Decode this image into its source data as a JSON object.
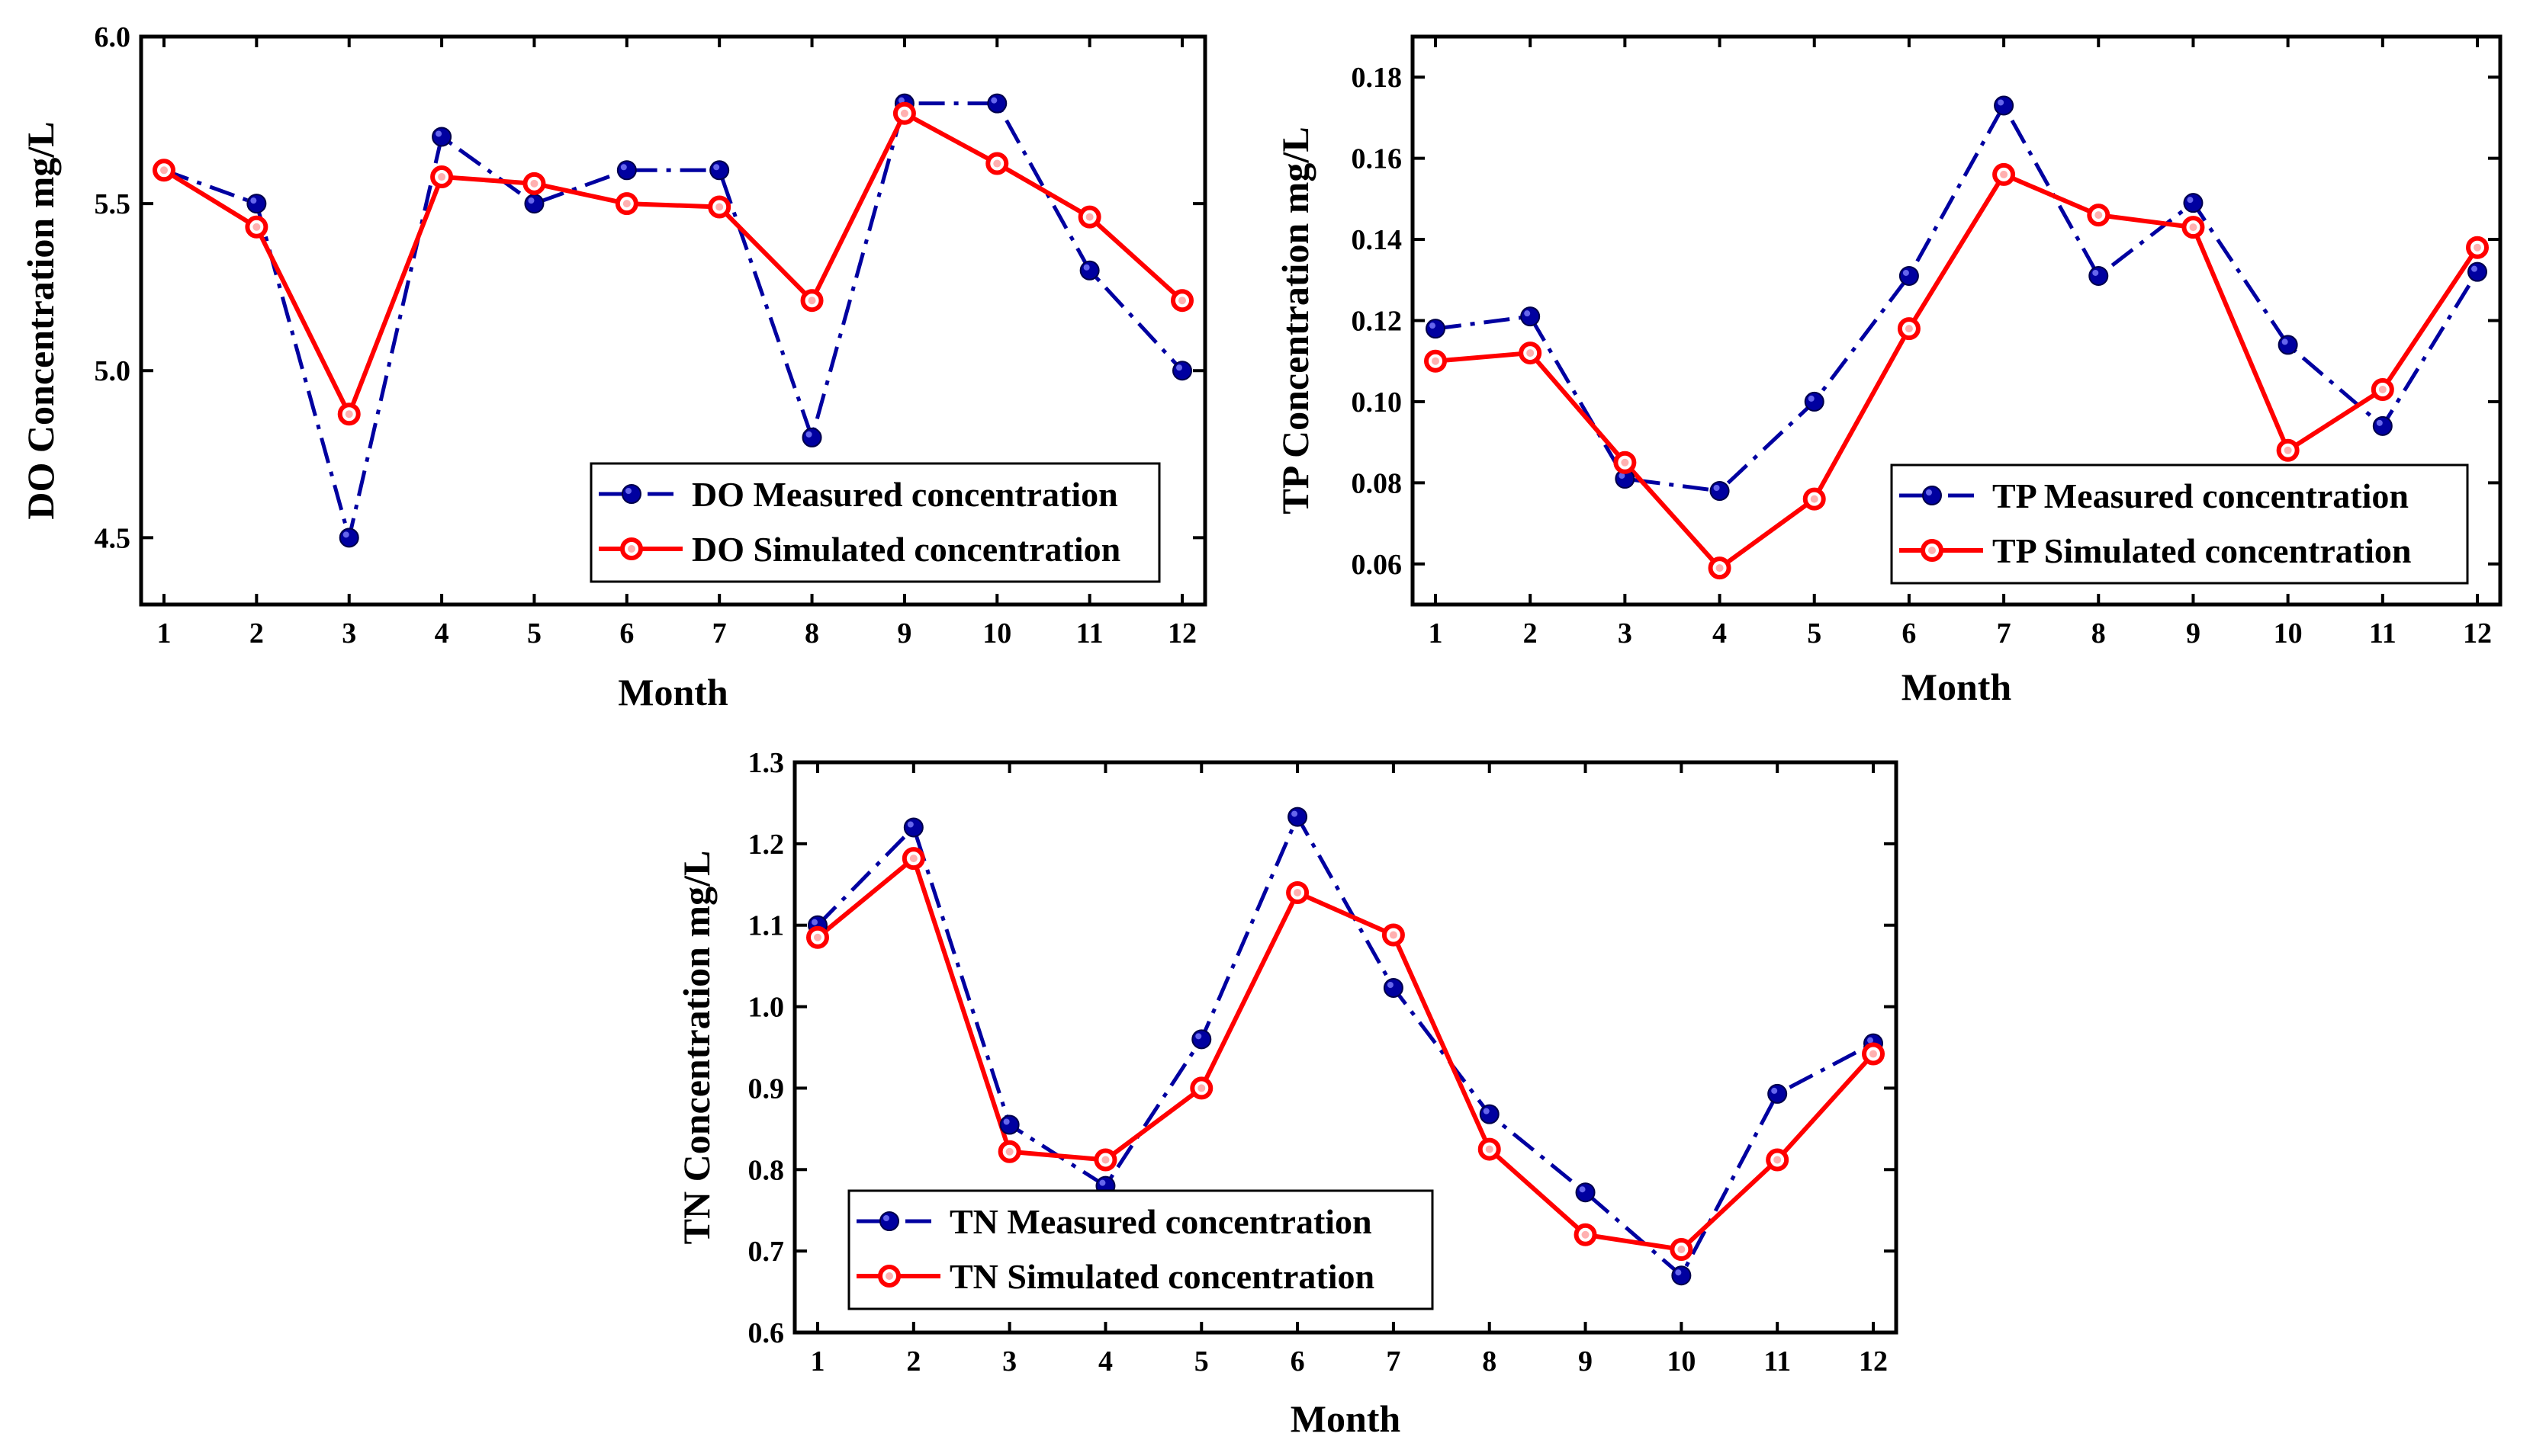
{
  "chart_data": [
    {
      "type": "line",
      "xlabel": "Month",
      "ylabel": "DO Concentration mg/L",
      "categories": [
        "1",
        "2",
        "3",
        "4",
        "5",
        "6",
        "7",
        "8",
        "9",
        "10",
        "11",
        "12"
      ],
      "yticks": [
        "4.5",
        "5.0",
        "5.5",
        "6.0"
      ],
      "ylim": [
        4.3,
        6.0
      ],
      "legend_position": "bottom-right",
      "series": [
        {
          "name": "DO Measured concentration",
          "color": "#0000a0",
          "style": "dash-dot",
          "marker": "dot",
          "values": [
            5.6,
            5.5,
            4.5,
            5.7,
            5.5,
            5.6,
            5.6,
            4.8,
            5.8,
            5.8,
            5.3,
            5.0
          ]
        },
        {
          "name": "DO Simulated concentration",
          "color": "#ff0000",
          "style": "solid",
          "marker": "ring",
          "values": [
            5.6,
            5.43,
            4.87,
            5.58,
            5.56,
            5.5,
            5.49,
            5.21,
            5.77,
            5.62,
            5.46,
            5.21
          ]
        }
      ]
    },
    {
      "type": "line",
      "xlabel": "Month",
      "ylabel": "TP Concentration mg/L",
      "categories": [
        "1",
        "2",
        "3",
        "4",
        "5",
        "6",
        "7",
        "8",
        "9",
        "10",
        "11",
        "12"
      ],
      "yticks": [
        "0.06",
        "0.08",
        "0.10",
        "0.12",
        "0.14",
        "0.16",
        "0.18"
      ],
      "ylim": [
        0.05,
        0.19
      ],
      "legend_position": "bottom-right",
      "series": [
        {
          "name": "TP Measured concentration",
          "color": "#0000a0",
          "style": "dash-dot",
          "marker": "dot",
          "values": [
            0.118,
            0.121,
            0.081,
            0.078,
            0.1,
            0.131,
            0.173,
            0.131,
            0.149,
            0.114,
            0.094,
            0.132
          ]
        },
        {
          "name": "TP Simulated concentration",
          "color": "#ff0000",
          "style": "solid",
          "marker": "ring",
          "values": [
            0.11,
            0.112,
            0.085,
            0.059,
            0.076,
            0.118,
            0.156,
            0.146,
            0.143,
            0.088,
            0.103,
            0.138
          ]
        }
      ]
    },
    {
      "type": "line",
      "xlabel": "Month",
      "ylabel": "TN Concentration mg/L",
      "categories": [
        "1",
        "2",
        "3",
        "4",
        "5",
        "6",
        "7",
        "8",
        "9",
        "10",
        "11",
        "12"
      ],
      "yticks": [
        "0.6",
        "0.7",
        "0.8",
        "0.9",
        "1.0",
        "1.1",
        "1.2",
        "1.3"
      ],
      "ylim": [
        0.6,
        1.3
      ],
      "legend_position": "bottom-left",
      "series": [
        {
          "name": "TN Measured concentration",
          "color": "#0000a0",
          "style": "dash-dot",
          "marker": "dot",
          "values": [
            1.1,
            1.22,
            0.855,
            0.78,
            0.96,
            1.233,
            1.023,
            0.868,
            0.772,
            0.67,
            0.893,
            0.955
          ]
        },
        {
          "name": "TN Simulated concentration",
          "color": "#ff0000",
          "style": "solid",
          "marker": "ring",
          "values": [
            1.085,
            1.182,
            0.822,
            0.812,
            0.9,
            1.14,
            1.088,
            0.825,
            0.72,
            0.702,
            0.812,
            0.942
          ]
        }
      ]
    }
  ]
}
